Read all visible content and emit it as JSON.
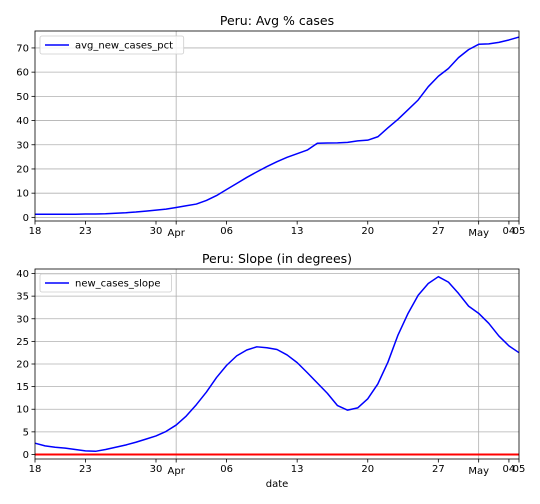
{
  "chart_data": [
    {
      "type": "line",
      "title": "Peru: Avg % cases",
      "xlabel": "",
      "ylabel": "",
      "ylim": [
        -1.5,
        77
      ],
      "xlim": [
        0,
        48
      ],
      "grid": true,
      "legend_position": "top-left",
      "y_ticks": [
        0,
        10,
        20,
        30,
        40,
        50,
        60,
        70
      ],
      "x_ticks": [
        {
          "day": 0,
          "label": "18"
        },
        {
          "day": 5,
          "label": "23"
        },
        {
          "day": 12,
          "label": "30"
        },
        {
          "day": 14,
          "label": "Apr"
        },
        {
          "day": 19,
          "label": "06"
        },
        {
          "day": 26,
          "label": "13"
        },
        {
          "day": 33,
          "label": "20"
        },
        {
          "day": 40,
          "label": "27"
        },
        {
          "day": 44,
          "label": "May"
        },
        {
          "day": 47,
          "label": "04"
        },
        {
          "day": 48,
          "label": "05"
        }
      ],
      "major_gridlines_x": [
        14,
        44
      ],
      "series": [
        {
          "name": "avg_new_cases_pct",
          "color": "#0000ff",
          "x": [
            0,
            1,
            2,
            3,
            4,
            5,
            6,
            7,
            8,
            9,
            10,
            11,
            12,
            13,
            14,
            15,
            16,
            17,
            18,
            19,
            20,
            21,
            22,
            23,
            24,
            25,
            26,
            27,
            28,
            29,
            30,
            31,
            32,
            33,
            34,
            35,
            36,
            37,
            38,
            39,
            40,
            41,
            42,
            43,
            44,
            45,
            46,
            47,
            48
          ],
          "y": [
            1.3,
            1.3,
            1.3,
            1.3,
            1.3,
            1.4,
            1.4,
            1.5,
            1.7,
            1.9,
            2.2,
            2.6,
            3.0,
            3.4,
            4.1,
            4.8,
            5.5,
            7.0,
            9.0,
            11.5,
            14.0,
            16.5,
            18.8,
            21.0,
            23.0,
            24.8,
            26.3,
            27.8,
            30.6,
            30.7,
            30.8,
            31.0,
            31.6,
            31.9,
            33.3,
            37.0,
            40.5,
            44.5,
            48.5,
            54.0,
            58.3,
            61.5,
            66.0,
            69.3,
            71.5,
            71.7,
            72.3,
            73.3,
            74.5
          ]
        }
      ]
    },
    {
      "type": "line",
      "title": "Peru: Slope (in degrees)",
      "xlabel": "date",
      "ylabel": "",
      "ylim": [
        -1,
        41
      ],
      "xlim": [
        0,
        48
      ],
      "grid": true,
      "legend_position": "top-left",
      "y_ticks": [
        0,
        5,
        10,
        15,
        20,
        25,
        30,
        35,
        40
      ],
      "x_ticks": [
        {
          "day": 0,
          "label": "18"
        },
        {
          "day": 5,
          "label": "23"
        },
        {
          "day": 12,
          "label": "30"
        },
        {
          "day": 14,
          "label": "Apr"
        },
        {
          "day": 19,
          "label": "06"
        },
        {
          "day": 26,
          "label": "13"
        },
        {
          "day": 33,
          "label": "20"
        },
        {
          "day": 40,
          "label": "27"
        },
        {
          "day": 44,
          "label": "May"
        },
        {
          "day": 47,
          "label": "04"
        },
        {
          "day": 48,
          "label": "05"
        }
      ],
      "major_gridlines_x": [
        14,
        44
      ],
      "reference_line": {
        "y": 0,
        "color": "#ff0000"
      },
      "series": [
        {
          "name": "new_cases_slope",
          "color": "#0000ff",
          "x": [
            0,
            1,
            2,
            3,
            4,
            5,
            6,
            7,
            8,
            9,
            10,
            11,
            12,
            13,
            14,
            15,
            16,
            17,
            18,
            19,
            20,
            21,
            22,
            23,
            24,
            25,
            26,
            27,
            28,
            29,
            30,
            31,
            32,
            33,
            34,
            35,
            36,
            37,
            38,
            39,
            40,
            41,
            42,
            43,
            44,
            45,
            46,
            47,
            48
          ],
          "y": [
            2.5,
            1.9,
            1.6,
            1.4,
            1.1,
            0.8,
            0.7,
            1.1,
            1.6,
            2.1,
            2.7,
            3.4,
            4.1,
            5.1,
            6.5,
            8.5,
            11.0,
            13.8,
            17.0,
            19.7,
            21.8,
            23.1,
            23.8,
            23.6,
            23.2,
            22.0,
            20.3,
            18.1,
            15.8,
            13.5,
            10.8,
            9.8,
            10.3,
            12.3,
            15.6,
            20.4,
            26.4,
            31.2,
            35.2,
            37.8,
            39.3,
            38.1,
            35.6,
            32.8,
            31.2,
            29.0,
            26.2,
            24.0,
            22.5
          ]
        }
      ]
    }
  ]
}
